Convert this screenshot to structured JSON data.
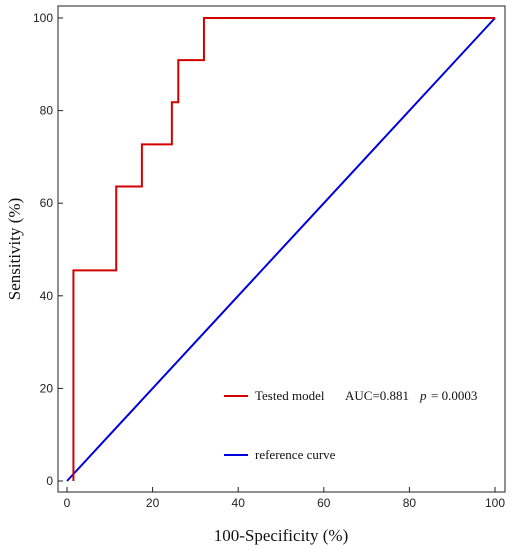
{
  "chart_data": {
    "type": "line",
    "title": "",
    "xlabel": "100-Specificity (%)",
    "ylabel": "Sensitivity (%)",
    "xlim": [
      0,
      100
    ],
    "ylim": [
      0,
      100
    ],
    "x_ticks": [
      "0",
      "20",
      "40",
      "60",
      "80",
      "100"
    ],
    "y_ticks": [
      "0",
      "20",
      "40",
      "60",
      "80",
      "100"
    ],
    "grid": false,
    "legend_position": "bottom-right",
    "series": [
      {
        "name": "Tested model",
        "color": "#d40000",
        "step": true,
        "x": [
          1.5,
          1.5,
          11.5,
          11.5,
          17.5,
          17.5,
          24.5,
          24.5,
          26,
          26,
          32,
          32,
          100
        ],
        "y": [
          0,
          45.5,
          45.5,
          63.6,
          63.6,
          72.7,
          72.7,
          81.8,
          81.8,
          90.9,
          90.9,
          100,
          100
        ]
      },
      {
        "name": "reference curve",
        "color": "#0000dd",
        "step": false,
        "x": [
          0,
          100
        ],
        "y": [
          0,
          100
        ]
      }
    ],
    "legend": {
      "model_label": "Tested model",
      "auc_text": "AUC=0.881",
      "p_symbol": "p",
      "p_value_text": "= 0.0003",
      "reference_label": "reference curve"
    }
  }
}
